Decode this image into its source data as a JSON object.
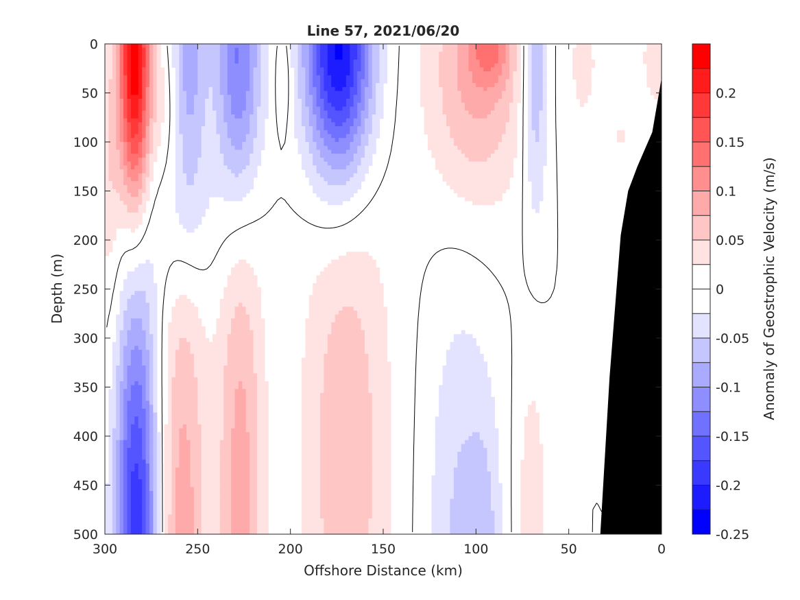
{
  "chart_data": {
    "type": "heatmap",
    "subtype": "filled-contour",
    "title": "Line 57, 2021/06/20",
    "xlabel": "Offshore Distance (km)",
    "ylabel": "Depth (m)",
    "xlim": [
      300,
      0
    ],
    "ylim": [
      0,
      500
    ],
    "x_reversed": true,
    "y_reversed": true,
    "xticks": [
      "300",
      "250",
      "200",
      "150",
      "100",
      "50",
      "0"
    ],
    "yticks": [
      "0",
      "50",
      "100",
      "150",
      "200",
      "250",
      "300",
      "350",
      "400",
      "450",
      "500"
    ],
    "colorbar": {
      "label": "Anomaly of Geostrophic Velocity (m/s)",
      "range": [
        -0.25,
        0.25
      ],
      "tick_labels": [
        "0.2",
        "0.15",
        "0.1",
        "0.05",
        "0",
        "-0.05",
        "-0.1",
        "-0.15",
        "-0.2",
        "-0.25"
      ],
      "levels": [
        {
          "min": -0.25,
          "max": -0.225,
          "color": "#0000ff"
        },
        {
          "min": -0.225,
          "max": -0.2,
          "color": "#1c1cff"
        },
        {
          "min": -0.2,
          "max": -0.175,
          "color": "#3939ff"
        },
        {
          "min": -0.175,
          "max": -0.15,
          "color": "#5555ff"
        },
        {
          "min": -0.15,
          "max": -0.125,
          "color": "#7171ff"
        },
        {
          "min": -0.125,
          "max": -0.1,
          "color": "#8e8eff"
        },
        {
          "min": -0.1,
          "max": -0.075,
          "color": "#aaaaff"
        },
        {
          "min": -0.075,
          "max": -0.05,
          "color": "#c6c6ff"
        },
        {
          "min": -0.05,
          "max": -0.025,
          "color": "#e3e3ff"
        },
        {
          "min": -0.025,
          "max": 0.0,
          "color": "#ffffff"
        },
        {
          "min": 0.0,
          "max": 0.025,
          "color": "#ffffff"
        },
        {
          "min": 0.025,
          "max": 0.05,
          "color": "#ffe3e3"
        },
        {
          "min": 0.05,
          "max": 0.075,
          "color": "#ffc6c6"
        },
        {
          "min": 0.075,
          "max": 0.1,
          "color": "#ffaaaa"
        },
        {
          "min": 0.1,
          "max": 0.125,
          "color": "#ff8e8e"
        },
        {
          "min": 0.125,
          "max": 0.15,
          "color": "#ff7171"
        },
        {
          "min": 0.15,
          "max": 0.175,
          "color": "#ff5555"
        },
        {
          "min": 0.175,
          "max": 0.2,
          "color": "#ff3939"
        },
        {
          "min": 0.2,
          "max": 0.225,
          "color": "#ff1c1c"
        },
        {
          "min": 0.225,
          "max": 0.25,
          "color": "#ff0000"
        }
      ]
    },
    "features": [
      {
        "name": "surface-jet-290",
        "x": 284,
        "depth": 15,
        "sx": 6,
        "sz": 110,
        "value": 0.25
      },
      {
        "name": "positive-west-edge",
        "x": 298,
        "depth": 130,
        "sx": 5,
        "sz": 100,
        "value": 0.045
      },
      {
        "name": "positive-upper-band",
        "x": 268,
        "depth": 60,
        "sx": 6,
        "sz": 60,
        "value": 0.03
      },
      {
        "name": "deep-negative-285",
        "x": 283,
        "depth": 520,
        "sx": 8,
        "sz": 190,
        "value": -0.2
      },
      {
        "name": "negative-255",
        "x": 255,
        "depth": 20,
        "sx": 7,
        "sz": 100,
        "value": -0.095
      },
      {
        "name": "negative-228",
        "x": 228,
        "depth": 20,
        "sx": 9,
        "sz": 110,
        "value": -0.14
      },
      {
        "name": "negative-mid-band",
        "x": 258,
        "depth": 180,
        "sx": 12,
        "sz": 60,
        "value": -0.035
      },
      {
        "name": "negative-175",
        "x": 174,
        "depth": 5,
        "sx": 13,
        "sz": 95,
        "value": -0.24
      },
      {
        "name": "positive-100",
        "x": 100,
        "depth": 30,
        "sx": 19,
        "sz": 95,
        "value": 0.085
      },
      {
        "name": "positive-092-core",
        "x": 92,
        "depth": 0,
        "sx": 8,
        "sz": 30,
        "value": 0.07
      },
      {
        "name": "positive-205",
        "x": 204,
        "depth": 35,
        "sx": 3,
        "sz": 40,
        "value": 0.04
      },
      {
        "name": "negative-070",
        "x": 68,
        "depth": 20,
        "sx": 5,
        "sz": 110,
        "value": -0.085
      },
      {
        "name": "positive-040",
        "x": 42,
        "depth": 20,
        "sx": 6,
        "sz": 50,
        "value": 0.035
      },
      {
        "name": "positive-000",
        "x": 2,
        "depth": 15,
        "sx": 6,
        "sz": 35,
        "value": 0.05
      },
      {
        "name": "positive-022",
        "x": 22,
        "depth": 95,
        "sx": 2,
        "sz": 15,
        "value": 0.03
      },
      {
        "name": "deep-positive-258",
        "x": 258,
        "depth": 520,
        "sx": 9,
        "sz": 230,
        "value": 0.09
      },
      {
        "name": "deep-positive-228",
        "x": 227,
        "depth": 450,
        "sx": 9,
        "sz": 230,
        "value": 0.085
      },
      {
        "name": "deep-positive-170",
        "x": 170,
        "depth": 420,
        "sx": 17,
        "sz": 220,
        "value": 0.07
      },
      {
        "name": "deep-negative-105",
        "x": 108,
        "depth": 500,
        "sx": 13,
        "sz": 170,
        "value": -0.055
      },
      {
        "name": "deep-negative-095",
        "x": 95,
        "depth": 540,
        "sx": 6,
        "sz": 110,
        "value": -0.04
      },
      {
        "name": "deep-positive-070",
        "x": 70,
        "depth": 490,
        "sx": 6,
        "sz": 120,
        "value": 0.045
      }
    ],
    "bathymetry": {
      "color": "#000000",
      "x": [
        0,
        0,
        5,
        13,
        18,
        22,
        28,
        33,
        33
      ],
      "depth": [
        500,
        35,
        90,
        125,
        150,
        195,
        340,
        500,
        500
      ]
    }
  }
}
